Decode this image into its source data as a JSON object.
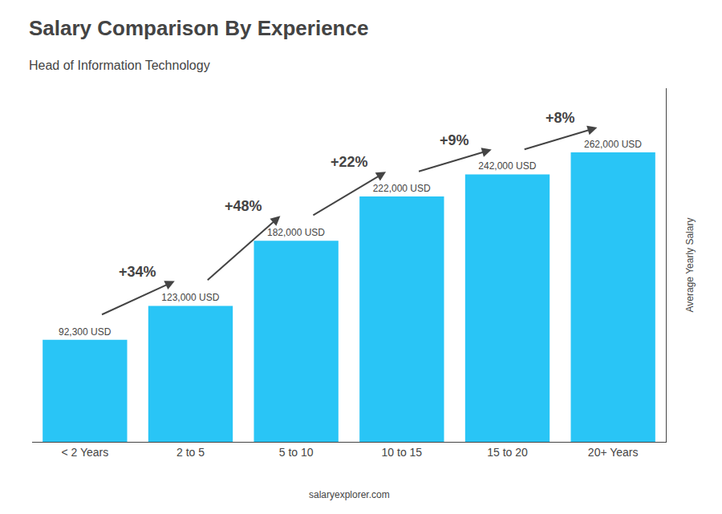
{
  "chart_data": {
    "type": "bar",
    "title": "Salary Comparison By Experience",
    "subtitle": "Head of Information Technology",
    "ylabel": "Average Yearly Salary",
    "categories": [
      "< 2 Years",
      "2 to 5",
      "5 to 10",
      "10 to 15",
      "15 to 20",
      "20+ Years"
    ],
    "values": [
      92300,
      123000,
      182000,
      222000,
      242000,
      262000
    ],
    "value_labels": [
      "92,300 USD",
      "123,000 USD",
      "182,000 USD",
      "222,000 USD",
      "242,000 USD",
      "262,000 USD"
    ],
    "data_labels": true,
    "color": "#29C5F6",
    "annotations": [
      {
        "text": "+34%",
        "from": "< 2 Years",
        "to": "2 to 5"
      },
      {
        "text": "+48%",
        "from": "2 to 5",
        "to": "5 to 10"
      },
      {
        "text": "+22%",
        "from": "5 to 10",
        "to": "10 to 15"
      },
      {
        "text": "+9%",
        "from": "10 to 15",
        "to": "15 to 20"
      },
      {
        "text": "+8%",
        "from": "15 to 20",
        "to": "20+ Years"
      },
      {
        "text": "salaryexplorer.com"
      }
    ],
    "ylim": [
      0,
      320000
    ],
    "yticks": [],
    "grid": false,
    "tick_labels": "x"
  }
}
